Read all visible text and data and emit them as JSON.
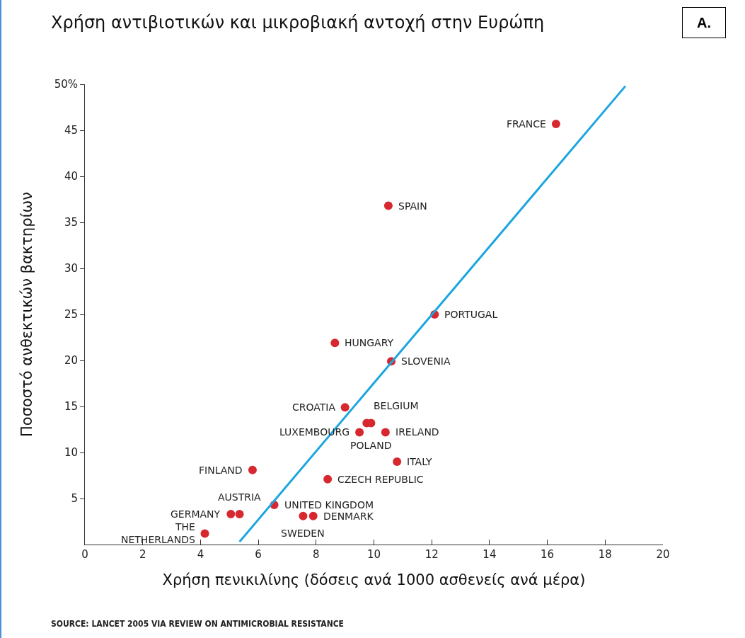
{
  "chart_data": {
    "type": "scatter",
    "title": "Χρήση αντιβιοτικών και μικροβιακή αντοχή στην Ευρώπη",
    "xlabel": "Χρήση πενικιλίνης (δόσεις ανά 1000 ασθενείς ανά μέρα)",
    "ylabel": "Ποσοστό ανθεκτικών βακτηρίων",
    "x": [
      16.3,
      10.5,
      12.1,
      8.65,
      10.6,
      9.0,
      9.75,
      9.9,
      9.5,
      10.4,
      10.8,
      5.8,
      8.4,
      6.55,
      5.35,
      5.05,
      7.55,
      7.9,
      4.15
    ],
    "series": [
      {
        "color": "#d7282f",
        "marker": "circle",
        "values": [
          45.7,
          36.8,
          25.0,
          21.9,
          19.9,
          14.9,
          13.2,
          13.2,
          12.2,
          12.2,
          9.0,
          8.1,
          7.1,
          4.3,
          3.3,
          3.3,
          3.1,
          3.1,
          1.2
        ]
      },
      {
        "type": "line",
        "color": "#1ba6de",
        "x": [
          5.35,
          18.7
        ],
        "values": [
          0.3,
          49.8
        ]
      }
    ],
    "xlim": [
      0,
      20
    ],
    "xticks": [
      0,
      2,
      4,
      6,
      8,
      10,
      12,
      14,
      16,
      18,
      20
    ],
    "ylim": [
      0,
      50
    ],
    "yticks": [
      5,
      10,
      15,
      20,
      25,
      30,
      35,
      40,
      45,
      {
        "value": 50,
        "label": "50%"
      }
    ],
    "grid": false,
    "annotations": [
      {
        "text": "FRANCE",
        "x": 16.3,
        "y": 45.7
      },
      {
        "text": "SPAIN",
        "x": 10.5,
        "y": 36.8
      },
      {
        "text": "PORTUGAL",
        "x": 12.1,
        "y": 25.0
      },
      {
        "text": "HUNGARY",
        "x": 8.65,
        "y": 21.9
      },
      {
        "text": "SLOVENIA",
        "x": 10.6,
        "y": 19.9
      },
      {
        "text": "CROATIA",
        "x": 9.0,
        "y": 14.9
      },
      {
        "text": "BELGIUM",
        "x": 9.75,
        "y": 13.2
      },
      {
        "text": "POLAND",
        "x": 9.9,
        "y": 13.2
      },
      {
        "text": "LUXEMBOURG",
        "x": 9.5,
        "y": 12.2
      },
      {
        "text": "IRELAND",
        "x": 10.4,
        "y": 12.2
      },
      {
        "text": "ITALY",
        "x": 10.8,
        "y": 9.0
      },
      {
        "text": "FINLAND",
        "x": 5.8,
        "y": 8.1
      },
      {
        "text": "CZECH REPUBLIC",
        "x": 8.4,
        "y": 7.1
      },
      {
        "text": "UNITED KINGDOM",
        "x": 6.55,
        "y": 4.3
      },
      {
        "text": "AUSTRIA",
        "x": 5.35,
        "y": 3.3
      },
      {
        "text": "GERMANY",
        "x": 5.05,
        "y": 3.3
      },
      {
        "text": "SWEDEN",
        "x": 7.55,
        "y": 3.1
      },
      {
        "text": "DENMARK",
        "x": 7.9,
        "y": 3.1
      },
      {
        "text": "THE\nNETHERLANDS",
        "x": 4.15,
        "y": 1.2
      },
      "A.",
      "SOURCE: LANCET 2005 VIA REVIEW ON ANTIMICROBIAL RESISTANCE"
    ]
  }
}
